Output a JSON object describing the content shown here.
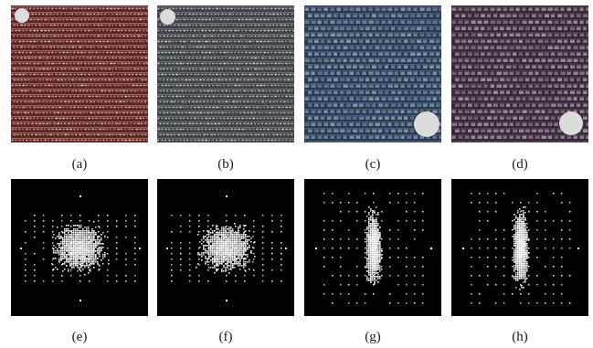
{
  "figure": {
    "panels": [
      {
        "id": "a",
        "caption": "(a)",
        "kind": "fabric",
        "base": "#5e2424",
        "stripe": "#c99a8c",
        "dot": "#e8ded2"
      },
      {
        "id": "b",
        "caption": "(b)",
        "kind": "fabric",
        "base": "#3f4248",
        "stripe": "#8e9098",
        "dot": "#ece8e2"
      },
      {
        "id": "c",
        "caption": "(c)",
        "kind": "fabric",
        "base": "#2b3a52",
        "stripe": "#4c7aa6",
        "dot": "#8a9aa6"
      },
      {
        "id": "d",
        "caption": "(d)",
        "kind": "fabric",
        "base": "#3a2634",
        "stripe": "#5a4a66",
        "dot": "#9a96a4"
      },
      {
        "id": "e",
        "caption": "(e)",
        "kind": "spectrum",
        "shape": "wide"
      },
      {
        "id": "f",
        "caption": "(f)",
        "kind": "spectrum",
        "shape": "wide"
      },
      {
        "id": "g",
        "caption": "(g)",
        "kind": "spectrum",
        "shape": "tall"
      },
      {
        "id": "h",
        "caption": "(h)",
        "kind": "spectrum",
        "shape": "tall"
      }
    ]
  }
}
